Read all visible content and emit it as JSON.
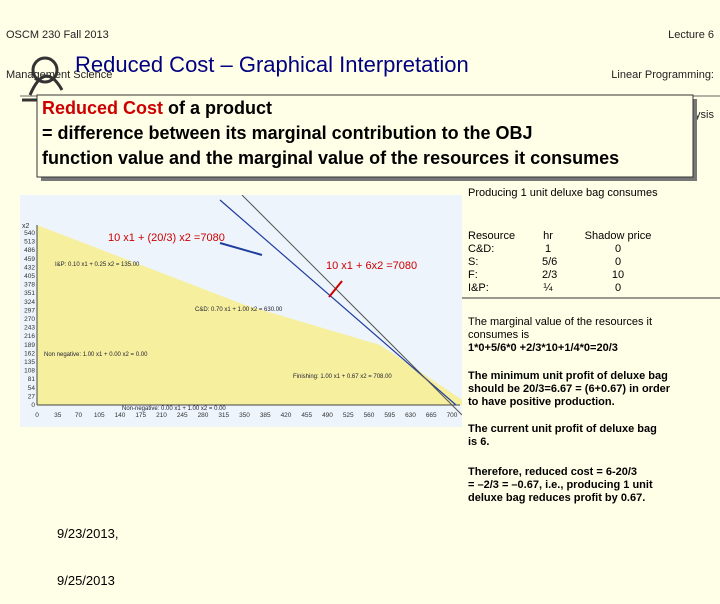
{
  "header": {
    "left": [
      "OSCM 230 Fall 2013",
      "Management Science"
    ],
    "right": [
      "Lecture 6",
      "Linear Programming:",
      "Sensitivity Analysis"
    ]
  },
  "title": "Reduced Cost – Graphical Interpretation",
  "definition": {
    "lines": [
      [
        {
          "text": "Reduced Cost",
          "color": "#cc0000"
        },
        {
          "text": " of a product",
          "color": "#000000"
        }
      ],
      [
        {
          "text": "= difference between its marginal contribution to the OBJ",
          "color": "#000000"
        }
      ],
      [
        {
          "text": "function value and the marginal value of the resources it consumes",
          "color": "#000000"
        }
      ]
    ]
  },
  "graph": {
    "y_axis_label": "x2",
    "yticks": [
      "540",
      "513",
      "486",
      "459",
      "432",
      "405",
      "378",
      "351",
      "324",
      "297",
      "270",
      "243",
      "216",
      "189",
      "162",
      "135",
      "108",
      "81",
      "54",
      "27",
      "0"
    ],
    "xticks": [
      "0",
      "35",
      "70",
      "105",
      "140",
      "175",
      "210",
      "245",
      "280",
      "315",
      "350",
      "385",
      "420",
      "455",
      "490",
      "525",
      "560",
      "595",
      "630",
      "665",
      "700"
    ],
    "constraint_labels": [
      "I&P: 0.10 x1 + 0.25 x2 = 135.00",
      "C&D: 0.70 x1 + 1.00 x2 = 630.00",
      "Non negative: 1.00 x1 + 0.00 x2 = 0.00",
      "Finishing: 1.00 x1 + 0.67 x2 = 708.00",
      "Non-negative: 0.00 x1 + 1.00 x2 = 0.00"
    ],
    "annotations": [
      "10 x1 + (20/3) x2 =7080",
      "10 x1 + 6x2 =7080"
    ]
  },
  "consumption": {
    "intro": "Producing 1 unit deluxe bag consumes",
    "table": {
      "header": [
        "Resource",
        "hr",
        "Shadow price"
      ],
      "rows": [
        [
          "C&D:",
          "1",
          "0"
        ],
        [
          "S:",
          "5/6",
          "0"
        ],
        [
          "F:",
          "2/3",
          "10"
        ],
        [
          "I&P:",
          "¼",
          "0"
        ]
      ]
    }
  },
  "notes": [
    [
      "The marginal value of the resources it",
      "consumes is",
      "1*0+5/6*0 +2/3*10+1/4*0=20/3"
    ],
    [
      "The minimum unit profit of deluxe bag",
      "should be 20/3=6.67 = (6+0.67) in order",
      "to have positive production."
    ],
    [
      "The current unit profit of deluxe bag",
      "is 6."
    ],
    [
      "Therefore, reduced cost = 6-20/3",
      "= –2/3 = –0.67, i.e., producing 1 unit",
      "deluxe bag reduces profit by 0.67."
    ]
  ],
  "date": [
    "9/23/2013,",
    "9/25/2013"
  ]
}
